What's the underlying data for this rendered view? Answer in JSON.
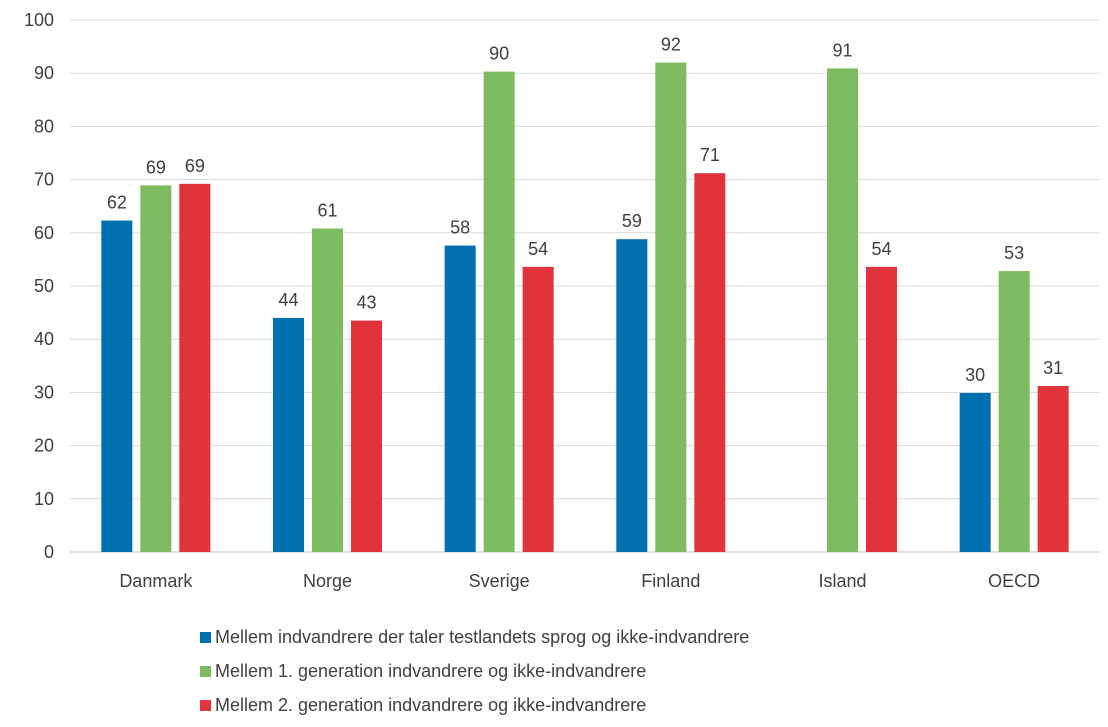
{
  "chart_data": {
    "type": "bar",
    "title": "",
    "xlabel": "",
    "ylabel": "",
    "ylim": [
      0,
      100
    ],
    "yticks": [
      "0",
      "10",
      "20",
      "30",
      "40",
      "50",
      "60",
      "70",
      "80",
      "90",
      "100"
    ],
    "grid": true,
    "legend_position": "bottom",
    "categories": [
      "Danmark",
      "Norge",
      "Sverige",
      "Finland",
      "Island",
      "OECD"
    ],
    "series": [
      {
        "name": "Mellem indvandrere der taler testlandets sprog og ikke-indvandrere",
        "color": "#0070b0",
        "values": [
          62.3,
          44.0,
          57.6,
          58.8,
          null,
          29.9
        ],
        "labels": [
          "62",
          "44",
          "58",
          "59",
          "",
          "30"
        ]
      },
      {
        "name": "Mellem 1. generation indvandrere og ikke-indvandrere",
        "color": "#7cbb5f",
        "values": [
          68.9,
          60.8,
          90.3,
          92.0,
          90.9,
          52.8
        ],
        "labels": [
          "69",
          "61",
          "90",
          "92",
          "91",
          "53"
        ]
      },
      {
        "name": "Mellem 2. generation indvandrere og ikke-indvandrere",
        "color": "#e0333c",
        "values": [
          69.2,
          43.5,
          53.6,
          71.2,
          53.6,
          31.2
        ],
        "labels": [
          "69",
          "43",
          "54",
          "71",
          "54",
          "31"
        ]
      }
    ]
  }
}
